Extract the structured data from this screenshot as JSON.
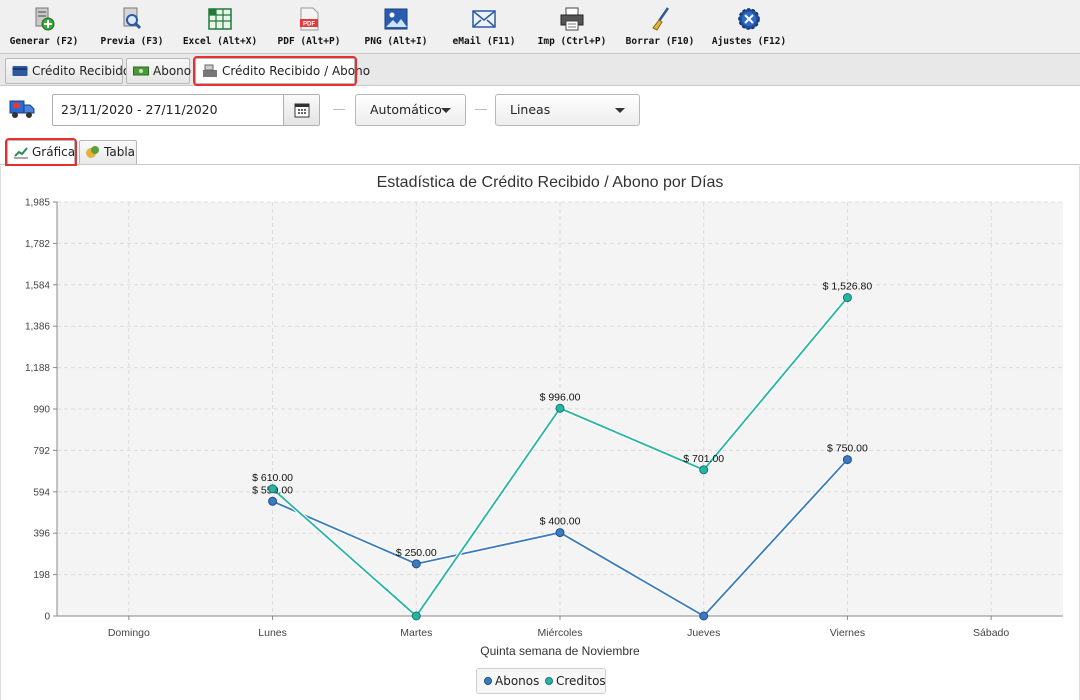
{
  "toolbar": {
    "buttons": [
      {
        "label": "Generar (F2)",
        "icon": "generate-icon"
      },
      {
        "label": "Previa (F3)",
        "icon": "preview-icon"
      },
      {
        "label": "Excel (Alt+X)",
        "icon": "excel-icon"
      },
      {
        "label": "PDF (Alt+P)",
        "icon": "pdf-icon"
      },
      {
        "label": "PNG (Alt+I)",
        "icon": "png-image-icon"
      },
      {
        "label": "eMail (F11)",
        "icon": "email-icon"
      },
      {
        "label": "Imp (Ctrl+P)",
        "icon": "printer-icon"
      },
      {
        "label": "Borrar (F10)",
        "icon": "broom-icon"
      },
      {
        "label": "Ajustes (F12)",
        "icon": "gear-icon"
      }
    ]
  },
  "tabs": [
    {
      "label": "Crédito Recibido",
      "icon": "card-icon"
    },
    {
      "label": "Abono",
      "icon": "money-icon"
    },
    {
      "label": "Crédito Recibido / Abono",
      "icon": "cash-register-icon",
      "active": true
    }
  ],
  "filters": {
    "date_range": "23/11/2020 - 27/11/2020",
    "mode_select": "Automático",
    "chart_type_select": "Lineas"
  },
  "subtabs": [
    {
      "label": "Gráfica",
      "icon": "line-chart-icon",
      "active": true
    },
    {
      "label": "Tabla",
      "icon": "table-icon"
    }
  ],
  "colors": {
    "abonos": "#3a7bbf",
    "creditos": "#26b5a5",
    "highlight": "#e53030"
  },
  "chart_data": {
    "type": "line",
    "title": "Estadística de Crédito Recibido / Abono por Días",
    "xlabel": "Quinta semana de Noviembre",
    "ylabel": "",
    "categories": [
      "Domingo",
      "Lunes",
      "Martes",
      "Miércoles",
      "Jueves",
      "Viernes",
      "Sábado"
    ],
    "ylim": [
      0,
      1985
    ],
    "yticks": [
      "0",
      "198",
      "396",
      "594",
      "792",
      "990",
      "1,188",
      "1,386",
      "1,584",
      "1,782",
      "1,985"
    ],
    "series": [
      {
        "name": "Abonos",
        "values": [
          null,
          550,
          250,
          400,
          0,
          750,
          null
        ],
        "labels": [
          "",
          "$ 550.00",
          "$ 250.00",
          "$ 400.00",
          "",
          "$ 750.00",
          ""
        ]
      },
      {
        "name": "Creditos",
        "values": [
          null,
          610,
          0,
          996,
          701,
          1526.8,
          null
        ],
        "labels": [
          "",
          "$ 610.00",
          "",
          "$ 996.00",
          "$ 701.00",
          "$ 1,526.80",
          ""
        ]
      }
    ],
    "grid": true,
    "legend": "bottom"
  }
}
